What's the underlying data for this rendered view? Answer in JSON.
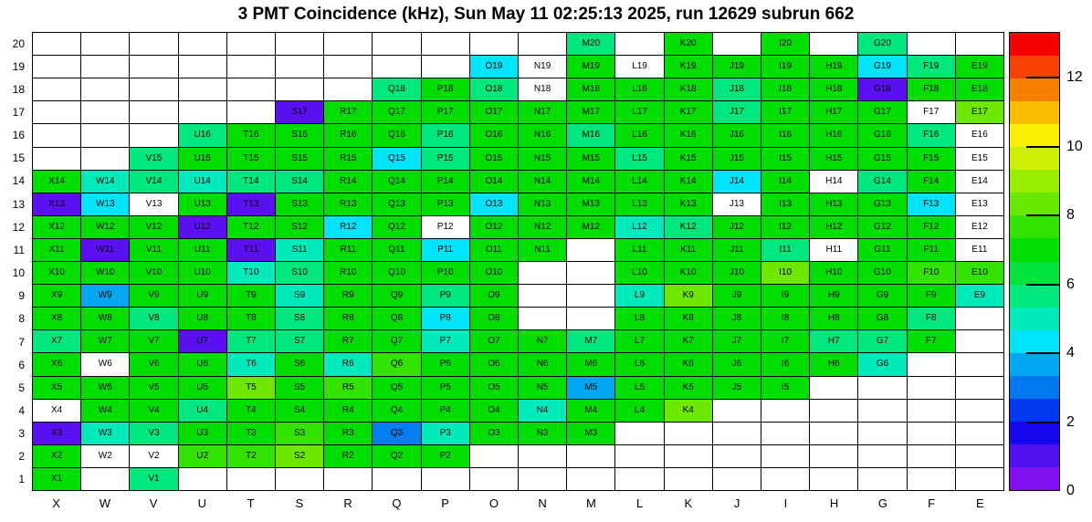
{
  "title": "3 PMT Coincidence (kHz), Sun May 11 02:25:13 2025, run 12629 subrun 662",
  "chart_data": {
    "type": "heatmap",
    "title": "3 PMT Coincidence (kHz), Sun May 11 02:25:13 2025, run 12629 subrun 662",
    "x_categories": [
      "X",
      "W",
      "V",
      "U",
      "T",
      "S",
      "R",
      "Q",
      "P",
      "O",
      "N",
      "M",
      "L",
      "K",
      "J",
      "I",
      "H",
      "G",
      "F",
      "E"
    ],
    "y_categories": [
      "20",
      "19",
      "18",
      "17",
      "16",
      "15",
      "14",
      "13",
      "12",
      "11",
      "10",
      "9",
      "8",
      "7",
      "6",
      "5",
      "4",
      "3",
      "2",
      "1"
    ],
    "grid_on": true,
    "colorbar": {
      "min": 0,
      "max": 13.33,
      "ticks": [
        "12",
        "10",
        "8",
        "6",
        "4",
        "2",
        "0"
      ],
      "tick_values": [
        12,
        10,
        8,
        6,
        4,
        2,
        0
      ],
      "bands_bottom_to_top": [
        "#8010F0",
        "#5010F0",
        "#1808F0",
        "#0038F0",
        "#0078F0",
        "#00A6F0",
        "#00E4FA",
        "#00EBBB",
        "#00E87D",
        "#00E33C",
        "#00DE00",
        "#33E300",
        "#66E800",
        "#99EE00",
        "#CCF000",
        "#F8F000",
        "#F8BC00",
        "#F88000",
        "#F84000",
        "#F80000"
      ]
    },
    "palette": {
      "violet": "#5A10F0",
      "blue": "#0080F0",
      "skyblue": "#00A6F0",
      "cyan": "#00E4FA",
      "turquoise": "#00EBBB",
      "spring": "#00E87D",
      "green": "#00DE00",
      "chartlite": "#33E300",
      "chartreuse": "#6FE800",
      "white": "#FFFFFF"
    },
    "band_value_estimates_khz": {
      "violet": 1.0,
      "blue": 3.0,
      "skyblue": 3.7,
      "cyan": 4.3,
      "turquoise": 5.0,
      "spring": 5.7,
      "green": 7.0,
      "chartlite": 7.7,
      "chartreuse": 8.5,
      "white": null
    },
    "cells": {
      "M20": "spring",
      "K20": "green",
      "I20": "green",
      "G20": "spring",
      "O19": "cyan",
      "N19": "white",
      "M19": "green",
      "L19": "white",
      "K19": "green",
      "J19": "green",
      "I19": "green",
      "H19": "green",
      "G19": "cyan",
      "F19": "spring",
      "E19": "green",
      "Q18": "spring",
      "P18": "green",
      "O18": "spring",
      "N18": "white",
      "M18": "green",
      "L18": "green",
      "K18": "green",
      "J18": "spring",
      "I18": "green",
      "H18": "green",
      "G18": "violet",
      "F18": "green",
      "E18": "green",
      "S17": "violet",
      "R17": "green",
      "Q17": "green",
      "P17": "green",
      "O17": "green",
      "N17": "green",
      "M17": "green",
      "L17": "green",
      "K17": "green",
      "J17": "spring",
      "I17": "green",
      "H17": "green",
      "G17": "green",
      "F17": "white",
      "E17": "chartreuse",
      "U16": "spring",
      "T16": "green",
      "S16": "green",
      "R16": "green",
      "Q16": "green",
      "P16": "spring",
      "O16": "green",
      "N16": "green",
      "M16": "spring",
      "L16": "green",
      "K16": "green",
      "J16": "green",
      "I16": "green",
      "H16": "green",
      "G16": "green",
      "F16": "spring",
      "E16": "white",
      "V15": "spring",
      "U15": "green",
      "T15": "green",
      "S15": "green",
      "R15": "green",
      "Q15": "cyan",
      "P15": "spring",
      "O15": "green",
      "N15": "green",
      "M15": "green",
      "L15": "spring",
      "K15": "green",
      "J15": "green",
      "I15": "green",
      "H15": "green",
      "G15": "green",
      "F15": "green",
      "E15": "white",
      "X14": "green",
      "W14": "turquoise",
      "V14": "spring",
      "U14": "turquoise",
      "T14": "spring",
      "S14": "spring",
      "R14": "green",
      "Q14": "green",
      "P14": "green",
      "O14": "green",
      "N14": "green",
      "M14": "green",
      "L14": "green",
      "K14": "green",
      "J14": "cyan",
      "I14": "green",
      "H14": "white",
      "G14": "spring",
      "F14": "green",
      "E14": "white",
      "X13": "violet",
      "W13": "cyan",
      "V13": "white",
      "U13": "green",
      "T13": "violet",
      "S13": "green",
      "R13": "green",
      "Q13": "green",
      "P13": "green",
      "O13": "cyan",
      "N13": "green",
      "M13": "green",
      "L13": "green",
      "K13": "green",
      "J13": "white",
      "I13": "green",
      "H13": "green",
      "G13": "green",
      "F13": "cyan",
      "E13": "white",
      "X12": "green",
      "W12": "green",
      "V12": "green",
      "U12": "violet",
      "T12": "green",
      "S12": "green",
      "R12": "cyan",
      "Q12": "green",
      "P12": "white",
      "O12": "green",
      "N12": "green",
      "M12": "green",
      "L12": "turquoise",
      "K12": "spring",
      "J12": "green",
      "I12": "green",
      "H12": "green",
      "G12": "green",
      "F12": "green",
      "E12": "white",
      "X11": "green",
      "W11": "violet",
      "V11": "green",
      "U11": "green",
      "T11": "violet",
      "S11": "turquoise",
      "R11": "green",
      "Q11": "green",
      "P11": "cyan",
      "O11": "green",
      "N11": "green",
      "L11": "green",
      "K11": "green",
      "J11": "green",
      "I11": "spring",
      "H11": "white",
      "G11": "green",
      "F11": "green",
      "E11": "white",
      "X10": "green",
      "W10": "green",
      "V10": "green",
      "U10": "green",
      "T10": "turquoise",
      "S10": "spring",
      "R10": "green",
      "Q10": "green",
      "P10": "green",
      "O10": "green",
      "L10": "green",
      "K10": "green",
      "J10": "green",
      "I10": "chartreuse",
      "H10": "green",
      "G10": "green",
      "F10": "chartlite",
      "E10": "chartlite",
      "X9": "green",
      "W9": "skyblue",
      "V9": "green",
      "U9": "green",
      "T9": "green",
      "S9": "turquoise",
      "R9": "green",
      "Q9": "green",
      "P9": "spring",
      "O9": "green",
      "L9": "turquoise",
      "K9": "chartreuse",
      "J9": "green",
      "I9": "green",
      "H9": "green",
      "G9": "green",
      "F9": "green",
      "E9": "turquoise",
      "X8": "green",
      "W8": "green",
      "V8": "spring",
      "U8": "green",
      "T8": "green",
      "S8": "spring",
      "R8": "green",
      "Q8": "green",
      "P8": "cyan",
      "O8": "green",
      "L8": "green",
      "K8": "green",
      "J8": "green",
      "I8": "green",
      "H8": "green",
      "G8": "green",
      "F8": "spring",
      "X7": "spring",
      "W7": "green",
      "V7": "green",
      "U7": "violet",
      "T7": "spring",
      "S7": "spring",
      "R7": "green",
      "Q7": "green",
      "P7": "turquoise",
      "O7": "green",
      "N7": "green",
      "M7": "spring",
      "L7": "green",
      "K7": "green",
      "J7": "green",
      "I7": "green",
      "H7": "spring",
      "G7": "spring",
      "F7": "green",
      "X6": "green",
      "W6": "white",
      "V6": "green",
      "U6": "green",
      "T6": "turquoise",
      "S6": "green",
      "R6": "turquoise",
      "Q6": "chartlite",
      "P6": "green",
      "O6": "green",
      "N6": "green",
      "M6": "green",
      "L6": "green",
      "K6": "green",
      "J6": "green",
      "I6": "green",
      "H6": "green",
      "G6": "turquoise",
      "X5": "green",
      "W5": "green",
      "V5": "green",
      "U5": "green",
      "T5": "chartreuse",
      "S5": "green",
      "R5": "chartlite",
      "Q5": "green",
      "P5": "green",
      "O5": "green",
      "N5": "green",
      "M5": "skyblue",
      "L5": "green",
      "K5": "green",
      "J5": "green",
      "I5": "green",
      "X4": "white",
      "W4": "green",
      "V4": "green",
      "U4": "spring",
      "T4": "green",
      "S4": "green",
      "R4": "green",
      "Q4": "green",
      "P4": "green",
      "O4": "green",
      "N4": "turquoise",
      "M4": "green",
      "L4": "green",
      "K4": "chartreuse",
      "X3": "violet",
      "W3": "turquoise",
      "V3": "spring",
      "U3": "green",
      "T3": "green",
      "S3": "chartlite",
      "R3": "green",
      "Q3": "blue",
      "P3": "turquoise",
      "O3": "green",
      "N3": "green",
      "M3": "green",
      "X2": "green",
      "W2": "white",
      "V2": "white",
      "U2": "chartlite",
      "T2": "chartlite",
      "S2": "chartreuse",
      "R2": "green",
      "Q2": "green",
      "P2": "green",
      "X1": "green",
      "V1": "spring"
    }
  }
}
